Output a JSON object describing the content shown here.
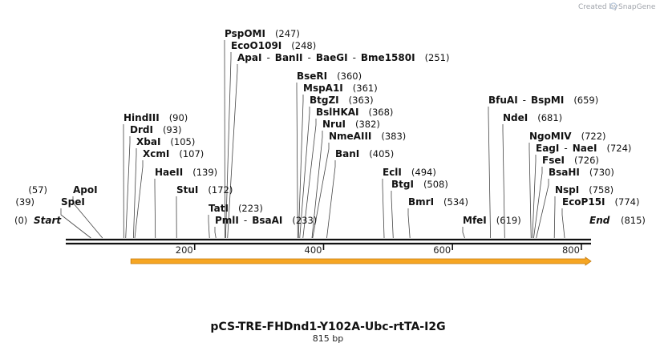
{
  "credit": {
    "text": "Created by",
    "brand": "SnapGene"
  },
  "plasmid": {
    "name": "pCS-TRE-FHDnd1-Y102A-Ubc-rtTA-I2G",
    "length_label": "815 bp",
    "length": 815
  },
  "ends": {
    "start_label": "Start",
    "start_pos": "(0)",
    "end_label": "End",
    "end_pos": "(815)"
  },
  "ruler": [
    {
      "pos": 200,
      "label": "200"
    },
    {
      "pos": 400,
      "label": "400"
    },
    {
      "pos": 600,
      "label": "600"
    },
    {
      "pos": 800,
      "label": "800"
    }
  ],
  "feature": {
    "name": "orange-feature-arrow",
    "start": 101,
    "end": 815,
    "color": "#f6a623",
    "outline": "#c47a0a"
  },
  "sites": [
    {
      "id": "pspomi",
      "names": [
        "PspOMI"
      ],
      "pos_label": "(247)",
      "cut": 247
    },
    {
      "id": "ecoo109i",
      "names": [
        "EcoO109I"
      ],
      "pos_label": "(248)",
      "cut": 248
    },
    {
      "id": "apai",
      "names": [
        "ApaI",
        "BanII",
        "BaeGI",
        "Bme1580I"
      ],
      "pos_label": "(251)",
      "cut": 251
    },
    {
      "id": "bseri",
      "names": [
        "BseRI"
      ],
      "pos_label": "(360)",
      "cut": 360
    },
    {
      "id": "mspa1i",
      "names": [
        "MspA1I"
      ],
      "pos_label": "(361)",
      "cut": 361
    },
    {
      "id": "btgzi",
      "names": [
        "BtgZI"
      ],
      "pos_label": "(363)",
      "cut": 363
    },
    {
      "id": "bslhkai",
      "names": [
        "BslHKAI"
      ],
      "pos_label": "(368)",
      "cut": 368
    },
    {
      "id": "drui",
      "names": [
        "NruI"
      ],
      "pos_label": "(382)",
      "cut": 382
    },
    {
      "id": "nmeaiii",
      "names": [
        "NmeAIII"
      ],
      "pos_label": "(383)",
      "cut": 383
    },
    {
      "id": "bani",
      "names": [
        "BanI"
      ],
      "pos_label": "(405)",
      "cut": 405
    },
    {
      "id": "hindiii",
      "names": [
        "HindIII"
      ],
      "pos_label": "(90)",
      "cut": 90
    },
    {
      "id": "drdi",
      "names": [
        "DrdI"
      ],
      "pos_label": "(93)",
      "cut": 93
    },
    {
      "id": "xbai",
      "names": [
        "XbaI"
      ],
      "pos_label": "(105)",
      "cut": 105
    },
    {
      "id": "xcmi",
      "names": [
        "XcmI"
      ],
      "pos_label": "(107)",
      "cut": 107
    },
    {
      "id": "haeii",
      "names": [
        "HaeII"
      ],
      "pos_label": "(139)",
      "cut": 139
    },
    {
      "id": "stui",
      "names": [
        "StuI"
      ],
      "pos_label": "(172)",
      "cut": 172
    },
    {
      "id": "tati",
      "names": [
        "TatI"
      ],
      "pos_label": "(223)",
      "cut": 223
    },
    {
      "id": "pmli",
      "names": [
        "PmlI",
        "BsaAI"
      ],
      "pos_label": "(233)",
      "cut": 233
    },
    {
      "id": "apoi",
      "names": [
        "ApoI"
      ],
      "pos_label": "(57)",
      "cut": 57
    },
    {
      "id": "spei",
      "names": [
        "SpeI"
      ],
      "pos_label": "(39)",
      "cut": 39
    },
    {
      "id": "ecli",
      "names": [
        "EclI"
      ],
      "pos_label": "(494)",
      "cut": 494
    },
    {
      "id": "btgi",
      "names": [
        "BtgI"
      ],
      "pos_label": "(508)",
      "cut": 508
    },
    {
      "id": "bmri",
      "names": [
        "BmrI"
      ],
      "pos_label": "(534)",
      "cut": 534
    },
    {
      "id": "mfei",
      "names": [
        "MfeI"
      ],
      "pos_label": "(619)",
      "cut": 619
    },
    {
      "id": "bfuai",
      "names": [
        "BfuAI",
        "BspMI"
      ],
      "pos_label": "(659)",
      "cut": 659
    },
    {
      "id": "ndei",
      "names": [
        "NdeI"
      ],
      "pos_label": "(681)",
      "cut": 681
    },
    {
      "id": "ngomiv",
      "names": [
        "NgoMIV"
      ],
      "pos_label": "(722)",
      "cut": 722
    },
    {
      "id": "eagi",
      "names": [
        "EagI",
        "NaeI"
      ],
      "pos_label": "(724)",
      "cut": 724
    },
    {
      "id": "fsei",
      "names": [
        "FseI"
      ],
      "pos_label": "(726)",
      "cut": 726
    },
    {
      "id": "bsahi",
      "names": [
        "BsaHI"
      ],
      "pos_label": "(730)",
      "cut": 730
    },
    {
      "id": "nspi",
      "names": [
        "NspI"
      ],
      "pos_label": "(758)",
      "cut": 758
    },
    {
      "id": "ecop15i",
      "names": [
        "EcoP15I"
      ],
      "pos_label": "(774)",
      "cut": 774
    }
  ]
}
